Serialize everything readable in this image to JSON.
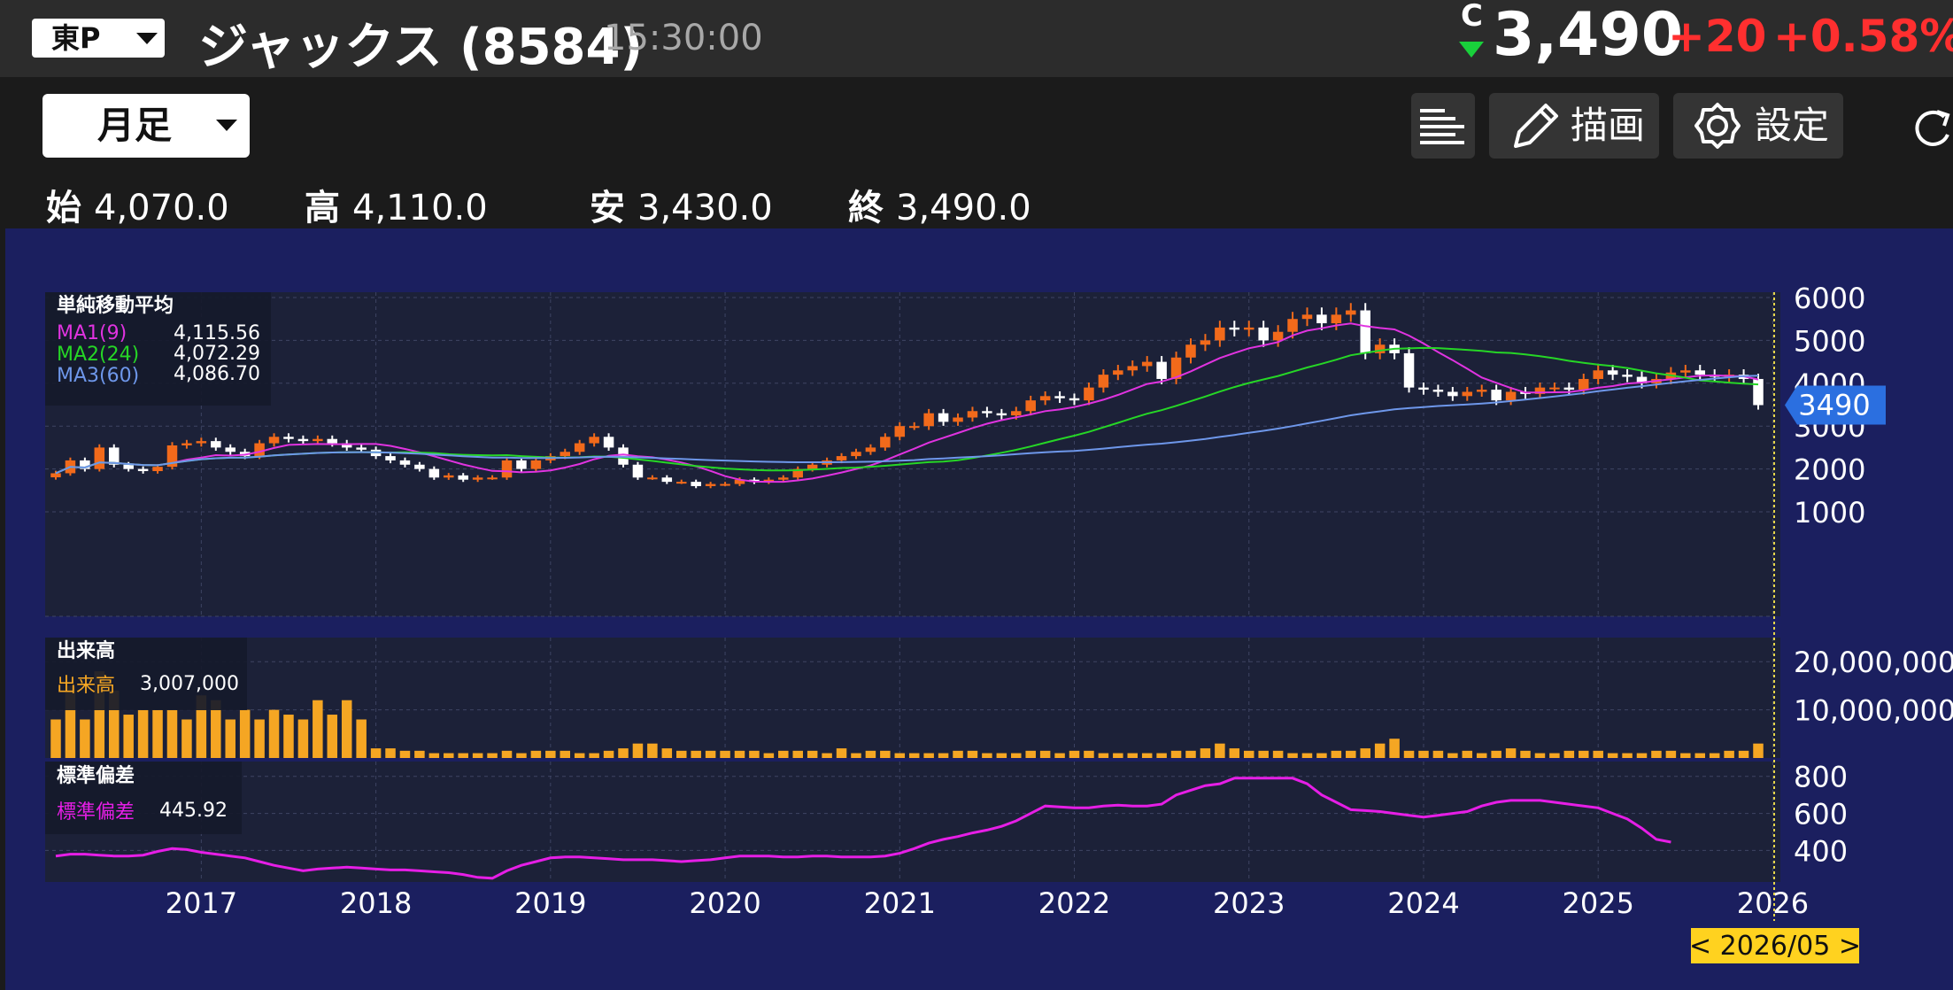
{
  "header": {
    "market": "東P",
    "name": "ジャックス",
    "code": "(8584)",
    "time": "15:30:00",
    "price_flag": "C",
    "price": "3,490",
    "change": "+20",
    "change_pct": "+0.58%",
    "down_color": "#19d03b",
    "up_color": "#ff2f2f"
  },
  "toolbar": {
    "period": "月足",
    "draw_label": "描画",
    "settings_label": "設定",
    "icons": [
      "list-icon",
      "pencil-icon",
      "gear-icon",
      "reload-icon"
    ]
  },
  "ohlc": [
    {
      "key": "始",
      "value": "4,070.0"
    },
    {
      "key": "高",
      "value": "4,110.0"
    },
    {
      "key": "安",
      "value": "3,430.0"
    },
    {
      "key": "終",
      "value": "3,490.0"
    }
  ],
  "legends": {
    "sma": {
      "title": "単純移動平均",
      "items": [
        {
          "name": "MA1(9)",
          "value": "4,115.56",
          "color": "#e033e0"
        },
        {
          "name": "MA2(24)",
          "value": "4,072.29",
          "color": "#26d626"
        },
        {
          "name": "MA3(60)",
          "value": "4,086.70",
          "color": "#6e97ea"
        }
      ]
    },
    "volume": {
      "title": "出来高",
      "name": "出来高",
      "value": "3,007,000",
      "color": "#f5a623"
    },
    "stddev": {
      "title": "標準偏差",
      "name": "標準偏差",
      "value": "445.92",
      "color": "#e61ee6"
    }
  },
  "chart_data": {
    "type": "candlestick",
    "x_ticks": [
      "2017",
      "2018",
      "2019",
      "2020",
      "2021",
      "2022",
      "2023",
      "2024",
      "2025",
      "2026"
    ],
    "price_ticks": [
      "6000",
      "5000",
      "4000",
      "3000",
      "2000",
      "1000"
    ],
    "price_axis_values": [
      6000,
      5000,
      4000,
      3000,
      2000,
      1000
    ],
    "price_range": [
      1000,
      6000
    ],
    "volume_ticks": [
      "20,000,000",
      "10,000,000"
    ],
    "volume_axis_values": [
      20000000,
      10000000
    ],
    "volume_range": [
      0,
      25000000
    ],
    "stddev_ticks": [
      "800",
      "600",
      "400"
    ],
    "stddev_axis_values": [
      800,
      600,
      400
    ],
    "stddev_range": [
      230,
      880
    ],
    "current_price_label": "3490",
    "current_price": 3490,
    "cursor_label": "< 2026/05 >",
    "start": "2016-03",
    "candle_colors": {
      "up": "#f26a1b",
      "down": "#ffffff"
    },
    "close": [
      1900,
      2200,
      2000,
      2500,
      2100,
      2000,
      1950,
      2050,
      2550,
      2600,
      2650,
      2500,
      2400,
      2300,
      2600,
      2750,
      2700,
      2650,
      2700,
      2600,
      2500,
      2450,
      2300,
      2200,
      2100,
      2000,
      1800,
      1850,
      1750,
      1800,
      1800,
      2200,
      2000,
      2200,
      2300,
      2400,
      2600,
      2750,
      2500,
      2100,
      1800,
      1800,
      1700,
      1700,
      1600,
      1650,
      1650,
      1750,
      1700,
      1750,
      1800,
      2000,
      2100,
      2200,
      2300,
      2400,
      2500,
      2750,
      3000,
      3000,
      3300,
      3100,
      3200,
      3350,
      3300,
      3250,
      3350,
      3600,
      3700,
      3650,
      3600,
      3900,
      4200,
      4300,
      4400,
      4500,
      4100,
      4600,
      4900,
      5000,
      5300,
      5250,
      5300,
      5000,
      5200,
      5500,
      5600,
      5400,
      5600,
      5700,
      4700,
      4900,
      4700,
      3900,
      3850,
      3800,
      3700,
      3800,
      3850,
      3600,
      3800,
      3750,
      3900,
      3900,
      3850,
      4100,
      4300,
      4200,
      4150,
      4000,
      4100,
      4250,
      4300,
      4200,
      4150,
      4200,
      4100,
      3490
    ],
    "volume_millions": [
      8,
      15,
      8,
      18,
      14,
      9,
      10,
      10,
      10,
      8,
      13,
      12,
      8,
      10,
      8,
      10,
      9,
      8,
      12,
      9,
      12,
      8,
      2,
      2,
      1.5,
      1.5,
      1,
      1,
      1,
      1,
      1,
      1.5,
      1,
      1.5,
      1.5,
      1.5,
      1,
      1,
      1.5,
      2,
      3,
      3,
      2,
      1.5,
      1.5,
      1.5,
      1.5,
      1.5,
      1.5,
      1,
      1.5,
      1.5,
      1.5,
      1,
      2,
      1,
      1.5,
      1.5,
      1,
      1,
      1,
      1,
      1.5,
      1.5,
      1,
      1,
      1,
      1.5,
      1.5,
      1,
      1.5,
      1.5,
      1,
      1,
      1,
      1,
      1,
      1.5,
      1.5,
      2,
      3,
      2,
      1.5,
      1.5,
      1.5,
      1,
      1,
      1,
      1.5,
      1.5,
      2,
      3,
      4,
      1.5,
      1.5,
      1.5,
      1,
      1.5,
      1,
      1.5,
      2,
      1.5,
      1,
      1,
      1.5,
      1.5,
      1.5,
      1,
      1,
      1,
      1.5,
      1.5,
      1,
      1,
      1,
      1.5,
      1.5,
      3
    ],
    "stddev": [
      370,
      380,
      380,
      375,
      370,
      370,
      375,
      395,
      410,
      405,
      390,
      380,
      370,
      360,
      340,
      320,
      305,
      290,
      300,
      305,
      310,
      305,
      300,
      295,
      295,
      290,
      285,
      280,
      270,
      255,
      250,
      290,
      320,
      340,
      360,
      365,
      365,
      360,
      355,
      350,
      350,
      350,
      345,
      340,
      345,
      350,
      360,
      370,
      370,
      370,
      365,
      365,
      370,
      370,
      365,
      365,
      365,
      370,
      385,
      410,
      440,
      460,
      475,
      495,
      510,
      530,
      560,
      600,
      640,
      635,
      630,
      630,
      640,
      645,
      640,
      640,
      650,
      700,
      725,
      750,
      760,
      790,
      790,
      790,
      790,
      790,
      760,
      700,
      660,
      620,
      615,
      610,
      600,
      590,
      580,
      590,
      600,
      610,
      640,
      660,
      670,
      670,
      670,
      660,
      650,
      640,
      630,
      600,
      570,
      520,
      460,
      445
    ]
  }
}
